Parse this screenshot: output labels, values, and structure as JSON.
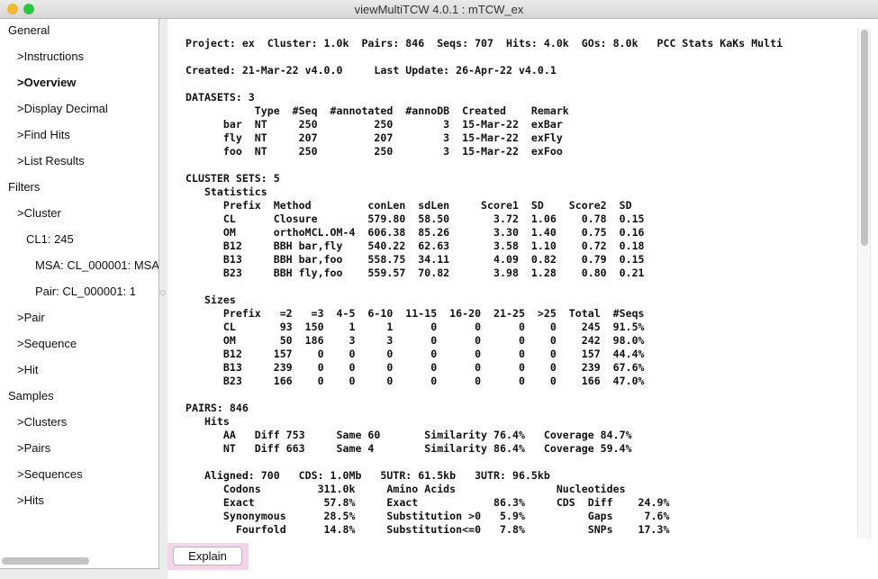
{
  "window": {
    "title": "viewMultiTCW 4.0.1 : mTCW_ex",
    "colors": {
      "minimize": "#f5b731",
      "zoom": "#2ac840",
      "explain_bg": "#f3d4ea"
    }
  },
  "sidebar": {
    "items": [
      {
        "label": "General",
        "indent": 0
      },
      {
        "label": ">Instructions",
        "indent": 1
      },
      {
        "label": ">Overview",
        "indent": 1,
        "selected": true
      },
      {
        "label": ">Display Decimal",
        "indent": 1
      },
      {
        "label": ">Find Hits",
        "indent": 1
      },
      {
        "label": ">List Results",
        "indent": 1
      },
      {
        "label": "Filters",
        "indent": 0
      },
      {
        "label": ">Cluster",
        "indent": 1
      },
      {
        "label": "CL1: 245",
        "indent": 2
      },
      {
        "label": "MSA: CL_000001: MSA",
        "indent": 3
      },
      {
        "label": "Pair: CL_000001: 1",
        "indent": 3
      },
      {
        "label": ">Pair",
        "indent": 1
      },
      {
        "label": ">Sequence",
        "indent": 1
      },
      {
        "label": ">Hit",
        "indent": 1
      },
      {
        "label": "Samples",
        "indent": 0
      },
      {
        "label": ">Clusters",
        "indent": 1
      },
      {
        "label": ">Pairs",
        "indent": 1
      },
      {
        "label": ">Sequences",
        "indent": 1
      },
      {
        "label": ">Hits",
        "indent": 1
      }
    ]
  },
  "overview": {
    "lines": [
      "Project: ex  Cluster: 1.0k  Pairs: 846  Seqs: 707  Hits: 4.0k  GOs: 8.0k   PCC Stats KaKs Multi",
      "",
      "Created: 21-Mar-22 v4.0.0     Last Update: 26-Apr-22 v4.0.1",
      "",
      "DATASETS: 3",
      "           Type  #Seq  #annotated  #annoDB  Created    Remark",
      "      bar  NT     250         250        3  15-Mar-22  exBar",
      "      fly  NT     207         207        3  15-Mar-22  exFly",
      "      foo  NT     250         250        3  15-Mar-22  exFoo",
      "",
      "CLUSTER SETS: 5",
      "   Statistics",
      "      Prefix  Method         conLen  sdLen     Score1  SD    Score2  SD",
      "      CL      Closure        579.80  58.50       3.72  1.06    0.78  0.15",
      "      OM      orthoMCL.OM-4  606.38  85.26       3.30  1.40    0.75  0.16",
      "      B12     BBH bar,fly    540.22  62.63       3.58  1.10    0.72  0.18",
      "      B13     BBH bar,foo    558.75  34.11       4.09  0.82    0.79  0.15",
      "      B23     BBH fly,foo    559.57  70.82       3.98  1.28    0.80  0.21",
      "",
      "   Sizes",
      "      Prefix   =2   =3  4-5  6-10  11-15  16-20  21-25  >25  Total  #Seqs",
      "      CL       93  150    1     1      0      0      0    0    245  91.5%",
      "      OM       50  186    3     3      0      0      0    0    242  98.0%",
      "      B12     157    0    0     0      0      0      0    0    157  44.4%",
      "      B13     239    0    0     0      0      0      0    0    239  67.6%",
      "      B23     166    0    0     0      0      0      0    0    166  47.0%",
      "",
      "PAIRS: 846",
      "   Hits",
      "      AA   Diff 753     Same 60       Similarity 76.4%   Coverage 84.7%",
      "      NT   Diff 663     Same 4        Similarity 86.4%   Coverage 59.4%",
      "",
      "   Aligned: 700   CDS: 1.0Mb   5UTR: 61.5kb   3UTR: 96.5kb",
      "      Codons         311.0k     Amino Acids                Nucleotides",
      "      Exact           57.8%     Exact            86.3%     CDS  Diff    24.9%",
      "      Synonymous      28.5%     Substitution >0   5.9%          Gaps     7.6%",
      "        Fourfold      14.8%     Substitution<=0   7.8%          SNPs    17.3%"
    ]
  },
  "footer": {
    "explain_label": "Explain"
  }
}
